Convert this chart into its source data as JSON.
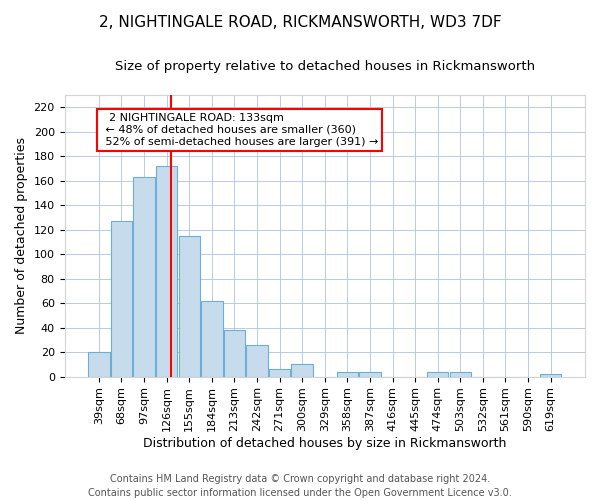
{
  "title": "2, NIGHTINGALE ROAD, RICKMANSWORTH, WD3 7DF",
  "subtitle": "Size of property relative to detached houses in Rickmansworth",
  "xlabel": "Distribution of detached houses by size in Rickmansworth",
  "ylabel": "Number of detached properties",
  "footer_lines": [
    "Contains HM Land Registry data © Crown copyright and database right 2024.",
    "Contains public sector information licensed under the Open Government Licence v3.0."
  ],
  "bar_labels": [
    "39sqm",
    "68sqm",
    "97sqm",
    "126sqm",
    "155sqm",
    "184sqm",
    "213sqm",
    "242sqm",
    "271sqm",
    "300sqm",
    "329sqm",
    "358sqm",
    "387sqm",
    "416sqm",
    "445sqm",
    "474sqm",
    "503sqm",
    "532sqm",
    "561sqm",
    "590sqm",
    "619sqm"
  ],
  "bar_values": [
    20,
    127,
    163,
    172,
    115,
    62,
    38,
    26,
    6,
    10,
    0,
    4,
    4,
    0,
    0,
    4,
    4,
    0,
    0,
    0,
    2
  ],
  "bar_color": "#c6dcec",
  "bar_edge_color": "#6baed6",
  "vline_color": "red",
  "vline_position": 3.18,
  "annotation_title": "2 NIGHTINGALE ROAD: 133sqm",
  "annotation_line1": "← 48% of detached houses are smaller (360)",
  "annotation_line2": "52% of semi-detached houses are larger (391) →",
  "annotation_box_color": "white",
  "annotation_box_edge": "red",
  "ylim": [
    0,
    230
  ],
  "yticks": [
    0,
    20,
    40,
    60,
    80,
    100,
    120,
    140,
    160,
    180,
    200,
    220
  ],
  "title_fontsize": 11,
  "subtitle_fontsize": 9.5,
  "axis_label_fontsize": 9,
  "tick_fontsize": 8,
  "annotation_fontsize": 8,
  "footer_fontsize": 7
}
